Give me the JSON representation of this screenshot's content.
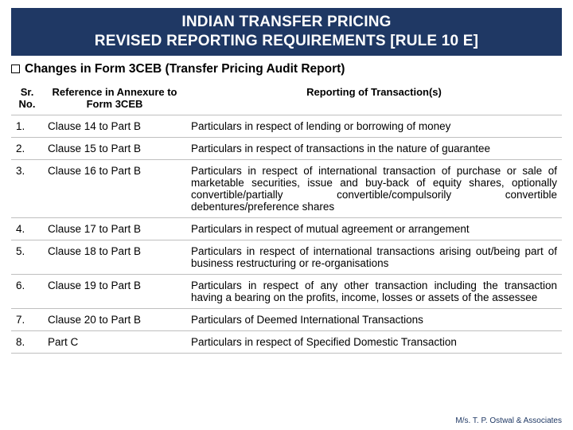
{
  "title": {
    "line1": "INDIAN TRANSFER PRICING",
    "line2": "REVISED REPORTING REQUIREMENTS [RULE 10 E]"
  },
  "subtitle": "Changes in Form 3CEB (Transfer Pricing Audit Report)",
  "columns": {
    "sr": "Sr. No.",
    "ref": "Reference in Annexure to Form 3CEB",
    "rep": "Reporting of Transaction(s)"
  },
  "rows": [
    {
      "sr": "1.",
      "ref": "Clause 14 to Part B",
      "rep": "Particulars in respect of lending or borrowing of money"
    },
    {
      "sr": "2.",
      "ref": "Clause 15 to Part B",
      "rep": "Particulars in respect of transactions in the nature of guarantee"
    },
    {
      "sr": "3.",
      "ref": "Clause 16 to Part B",
      "rep": "Particulars in respect of international transaction of purchase or sale of marketable securities, issue and buy-back of equity shares, optionally convertible/partially convertible/compulsorily convertible debentures/preference shares"
    },
    {
      "sr": "4.",
      "ref": "Clause 17 to Part B",
      "rep": "Particulars in respect of mutual agreement or arrangement"
    },
    {
      "sr": "5.",
      "ref": "Clause 18 to Part B",
      "rep": "Particulars in respect of international transactions arising out/being part of business restructuring or re-organisations"
    },
    {
      "sr": "6.",
      "ref": "Clause 19 to Part B",
      "rep": "Particulars in respect of any other transaction including the transaction having a  bearing on the profits, income, losses or assets of the assessee"
    },
    {
      "sr": "7.",
      "ref": "Clause 20 to Part B",
      "rep": "Particulars of Deemed International Transactions"
    },
    {
      "sr": "8.",
      "ref": "Part C",
      "rep": "Particulars in respect of Specified Domestic Transaction"
    }
  ],
  "footer": "M/s. T. P. Ostwal & Associates",
  "colors": {
    "header_bg": "#1f3864",
    "header_text": "#ffffff",
    "border": "#bfbfbf",
    "footer": "#1f3864"
  }
}
